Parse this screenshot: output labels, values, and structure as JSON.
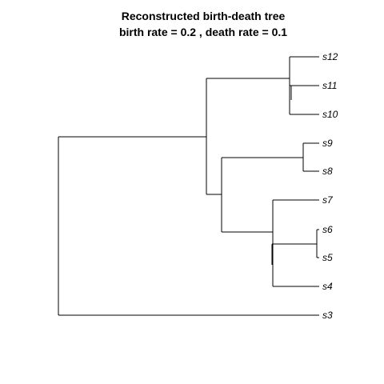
{
  "title": {
    "line1": "Reconstructed birth-death tree",
    "line2": "birth rate =  0.2 , death rate =  0.1"
  },
  "tree": {
    "tips": [
      "s12",
      "s11",
      "s10",
      "s9",
      "s8",
      "s7",
      "s6",
      "s5",
      "s4",
      "s3"
    ],
    "line_color": "#000000"
  }
}
